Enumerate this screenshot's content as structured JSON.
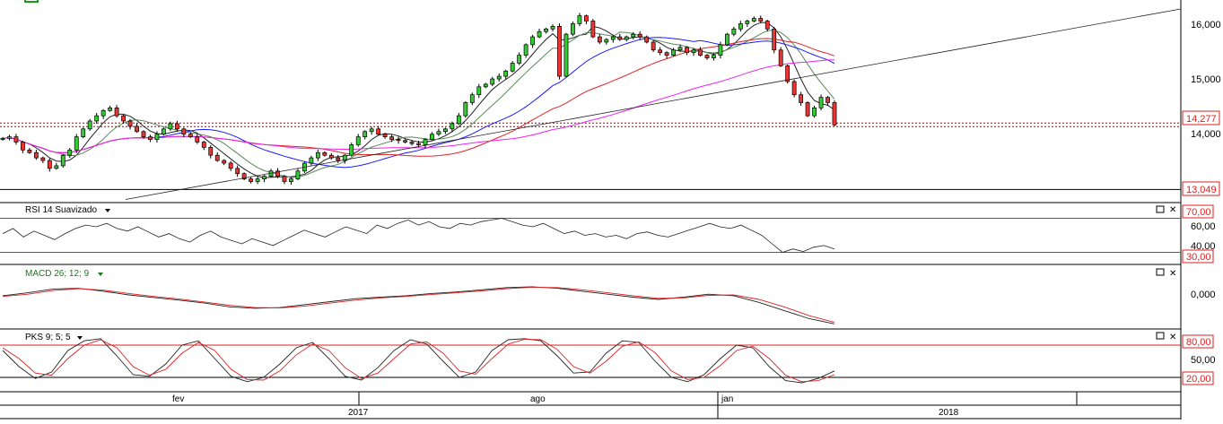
{
  "chart_data": [
    {
      "type": "candlestick",
      "panel": "price",
      "x_axis": {
        "months": [
          "fev",
          "ago",
          "jan"
        ],
        "years": [
          "2017",
          "2018"
        ]
      },
      "y_ticks": [
        "16,000",
        "15,000",
        "14,000"
      ],
      "last_price_label": "14,277",
      "support_label": "13,049",
      "support_value": 13049,
      "last_value": 14277,
      "close_series": [
        14020,
        14050,
        13950,
        13800,
        13750,
        13650,
        13600,
        13450,
        13500,
        13700,
        13800,
        14050,
        14200,
        14350,
        14450,
        14550,
        14600,
        14450,
        14350,
        14250,
        14150,
        14050,
        14000,
        14100,
        14200,
        14300,
        14200,
        14100,
        14050,
        13950,
        13850,
        13700,
        13600,
        13550,
        13450,
        13350,
        13250,
        13200,
        13250,
        13300,
        13400,
        13300,
        13200,
        13250,
        13400,
        13550,
        13650,
        13750,
        13700,
        13650,
        13600,
        13700,
        13900,
        14050,
        14150,
        14200,
        14100,
        14050,
        14000,
        13980,
        13950,
        13920,
        13900,
        14000,
        14100,
        14150,
        14200,
        14300,
        14450,
        14700,
        14850,
        15000,
        15050,
        15150,
        15200,
        15300,
        15450,
        15600,
        15800,
        15950,
        16050,
        16100,
        16150,
        15200,
        16000,
        16200,
        16350,
        16250,
        15950,
        15850,
        15900,
        15950,
        15900,
        15950,
        16000,
        15950,
        15850,
        15700,
        15650,
        15600,
        15700,
        15750,
        15650,
        15700,
        15600,
        15550,
        15600,
        15800,
        16000,
        16100,
        16200,
        16250,
        16300,
        16250,
        16100,
        15700,
        15400,
        15100,
        14850,
        14700,
        14450,
        14600,
        14800,
        14700,
        14277
      ],
      "series": [
        {
          "name": "",
          "color": "#222222"
        },
        {
          "name": "",
          "color": "#5a8a5a"
        },
        {
          "name": "",
          "color": "#1a1aff"
        },
        {
          "name": "",
          "color": "#dd2222"
        },
        {
          "name": "",
          "color": "#ee22ee"
        }
      ]
    },
    {
      "type": "line",
      "panel": "rsi",
      "label": "RSI 14 Suavizado",
      "levels": [
        "70,00",
        "30,00"
      ],
      "level_values": [
        70,
        30
      ],
      "y_ticks": [
        "60,00",
        "40,00"
      ],
      "values": [
        52,
        58,
        48,
        55,
        50,
        45,
        52,
        58,
        62,
        60,
        64,
        58,
        55,
        60,
        54,
        48,
        52,
        46,
        42,
        50,
        55,
        48,
        44,
        40,
        46,
        42,
        38,
        44,
        50,
        56,
        52,
        48,
        54,
        60,
        56,
        52,
        62,
        58,
        64,
        68,
        62,
        66,
        60,
        58,
        64,
        62,
        66,
        68,
        70,
        66,
        62,
        60,
        64,
        58,
        52,
        55,
        50,
        52,
        48,
        50,
        46,
        52,
        54,
        50,
        48,
        52,
        56,
        60,
        64,
        60,
        58,
        62,
        56,
        50,
        40,
        30,
        34,
        31,
        36,
        38,
        34
      ],
      "color": "#222222"
    },
    {
      "type": "line",
      "panel": "macd",
      "label": "MACD 26; 12; 9",
      "y_ticks": [
        "0,000"
      ],
      "series": [
        {
          "name": "",
          "color": "#222222",
          "values": [
            0.1,
            0.18,
            0.28,
            0.3,
            0.22,
            0.12,
            0.05,
            -0.02,
            -0.1,
            -0.2,
            -0.24,
            -0.22,
            -0.14,
            -0.06,
            0.02,
            0.06,
            0.1,
            0.16,
            0.2,
            0.26,
            0.32,
            0.34,
            0.3,
            0.22,
            0.14,
            0.06,
            0.0,
            0.06,
            0.14,
            0.1,
            -0.08,
            -0.3,
            -0.52,
            -0.66
          ]
        },
        {
          "name": "",
          "color": "#dd2222",
          "values": [
            0.08,
            0.14,
            0.24,
            0.29,
            0.25,
            0.16,
            0.08,
            0.01,
            -0.07,
            -0.16,
            -0.22,
            -0.23,
            -0.18,
            -0.1,
            -0.02,
            0.04,
            0.08,
            0.13,
            0.18,
            0.23,
            0.29,
            0.33,
            0.32,
            0.26,
            0.18,
            0.1,
            0.03,
            0.04,
            0.11,
            0.12,
            0.0,
            -0.2,
            -0.44,
            -0.62
          ]
        }
      ]
    },
    {
      "type": "line",
      "panel": "pks",
      "label": "PKS 9; 5; 5",
      "levels": [
        "80,00",
        "20,00"
      ],
      "level_values": [
        80,
        20
      ],
      "y_ticks": [
        "50,00"
      ],
      "series": [
        {
          "name": "",
          "color": "#222222",
          "values": [
            70,
            40,
            18,
            30,
            70,
            88,
            92,
            60,
            25,
            22,
            45,
            80,
            88,
            55,
            22,
            12,
            20,
            45,
            75,
            85,
            55,
            22,
            15,
            38,
            70,
            90,
            82,
            50,
            20,
            30,
            70,
            90,
            92,
            88,
            60,
            28,
            30,
            65,
            88,
            85,
            50,
            20,
            12,
            25,
            55,
            80,
            75,
            40,
            14,
            10,
            18,
            32
          ]
        },
        {
          "name": "",
          "color": "#dd2222",
          "values": [
            75,
            55,
            28,
            24,
            55,
            80,
            90,
            75,
            40,
            24,
            35,
            65,
            85,
            70,
            35,
            16,
            15,
            32,
            62,
            82,
            70,
            38,
            18,
            28,
            55,
            82,
            86,
            65,
            32,
            26,
            55,
            82,
            91,
            90,
            72,
            40,
            28,
            50,
            78,
            86,
            66,
            32,
            16,
            20,
            42,
            70,
            78,
            55,
            24,
            12,
            14,
            25
          ]
        }
      ]
    }
  ]
}
